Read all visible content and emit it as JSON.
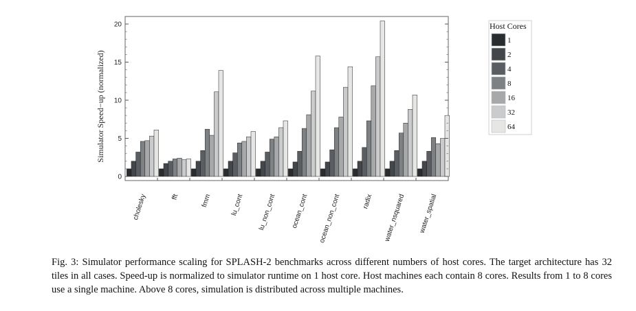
{
  "chart_data": {
    "type": "bar",
    "ylabel": "Simulator Speed−up (normalized)",
    "xlabel": "",
    "ylim": [
      0,
      21
    ],
    "yticks": [
      0,
      5,
      10,
      15,
      20
    ],
    "legend_title": "Host Cores",
    "legend_position": "right",
    "categories": [
      "cholesky",
      "fft",
      "fmm",
      "lu_cont",
      "lu_non_cont",
      "ocean_cont",
      "ocean_non_cont",
      "radix",
      "water_nsquared",
      "water_spatial"
    ],
    "series": [
      {
        "name": "1",
        "color": "#2a2d30",
        "values": [
          1,
          1,
          1,
          1,
          1,
          1,
          1,
          1,
          1,
          1
        ]
      },
      {
        "name": "2",
        "color": "#43474b",
        "values": [
          2.0,
          1.7,
          2.0,
          2.0,
          2.0,
          1.9,
          1.9,
          2.0,
          2.0,
          2.0
        ]
      },
      {
        "name": "4",
        "color": "#5a5e62",
        "values": [
          3.2,
          2.0,
          3.4,
          3.1,
          3.2,
          3.3,
          3.5,
          3.8,
          3.4,
          3.3
        ]
      },
      {
        "name": "8",
        "color": "#7d8184",
        "values": [
          4.6,
          2.3,
          6.2,
          4.4,
          4.9,
          6.3,
          6.4,
          7.3,
          5.7,
          5.1
        ]
      },
      {
        "name": "16",
        "color": "#a6a8aa",
        "values": [
          4.7,
          2.4,
          5.4,
          4.6,
          5.2,
          8.1,
          7.8,
          11.9,
          7.0,
          4.3
        ]
      },
      {
        "name": "32",
        "color": "#cacbcc",
        "values": [
          5.3,
          2.2,
          11.1,
          5.2,
          6.4,
          11.2,
          11.7,
          15.7,
          8.8,
          5.0
        ]
      },
      {
        "name": "64",
        "color": "#e6e6e4",
        "values": [
          6.1,
          2.3,
          13.9,
          5.9,
          7.3,
          15.8,
          14.4,
          20.4,
          10.7,
          8.0
        ]
      }
    ]
  },
  "caption": "Fig. 3: Simulator performance scaling for SPLASH-2 benchmarks across different numbers of host cores. The target architecture has 32 tiles in all cases. Speed-up is normalized to simulator runtime on 1 host core. Host machines each contain 8 cores. Results from 1 to 8 cores use a single machine. Above 8 cores, simulation is distributed across multiple machines."
}
